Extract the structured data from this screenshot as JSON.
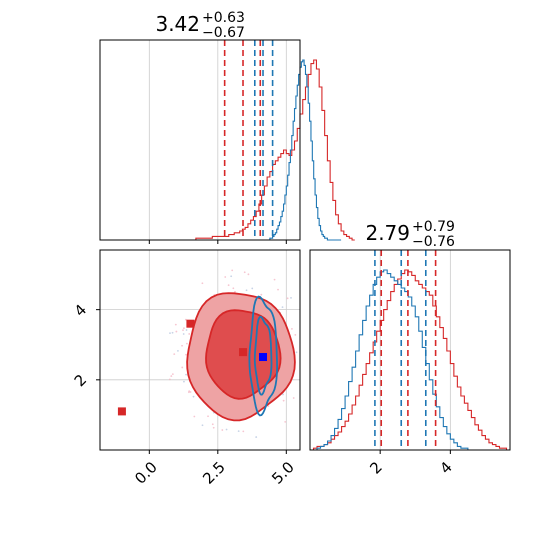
{
  "colors": {
    "red": "#d62728",
    "blue": "#1f77b4",
    "grid": "#cccccc",
    "red_fill_outer": "#eea3a4",
    "red_fill_inner": "#df4d4e"
  },
  "chart_data": [
    {
      "panel": "hist-param-1",
      "type": "histogram",
      "title": {
        "value": "3.42",
        "plus": "+0.63",
        "minus": "−0.67"
      },
      "xlim": [
        -1.8,
        5.5
      ],
      "grid": true,
      "series": [
        {
          "color": "red",
          "bin_start": -0.5,
          "bin_width": 0.1,
          "counts": [
            0,
            0,
            0,
            0,
            0,
            0,
            0,
            0,
            0,
            0,
            0,
            0,
            0,
            0,
            0,
            0,
            0,
            0,
            0,
            0,
            0,
            0,
            1,
            1,
            1,
            1,
            1,
            1,
            2,
            2,
            2,
            2,
            2,
            2,
            3,
            3,
            4,
            4,
            5,
            6,
            7,
            9,
            11,
            13,
            16,
            20,
            25,
            30,
            35,
            38,
            42,
            44,
            46,
            48,
            50,
            48,
            47,
            50,
            55,
            62,
            70,
            78,
            85,
            92,
            98,
            100,
            95,
            85,
            72,
            58,
            44,
            32,
            22,
            14,
            9,
            5,
            3,
            2,
            1,
            0
          ],
          "median": 3.42,
          "q_low": 2.75,
          "q_high": 4.05
        },
        {
          "color": "blue",
          "bin_start": 2.5,
          "bin_width": 0.05,
          "counts": [
            0,
            0,
            0,
            0,
            0,
            0,
            0,
            0,
            0,
            0,
            0,
            0,
            0,
            0,
            0,
            0,
            0,
            0,
            0,
            0,
            0,
            0,
            0,
            0,
            0,
            0,
            0,
            0,
            0,
            0,
            0,
            0,
            0,
            0,
            0,
            0,
            0,
            0,
            1,
            1,
            2,
            3,
            4,
            6,
            8,
            10,
            13,
            16,
            20,
            25,
            30,
            36,
            43,
            50,
            58,
            66,
            73,
            80,
            86,
            92,
            96,
            99,
            100,
            97,
            92,
            85,
            76,
            66,
            55,
            44,
            34,
            25,
            18,
            12,
            8,
            5,
            3,
            2,
            1,
            1,
            0,
            0,
            0,
            0,
            0,
            0,
            0,
            0,
            0,
            0
          ],
          "median": 4.15,
          "q_low": 3.85,
          "q_high": 4.5
        }
      ]
    },
    {
      "panel": "scatter-contour",
      "type": "scatter",
      "xlim": [
        -1.8,
        5.5
      ],
      "ylim": [
        0.0,
        5.7
      ],
      "xticks": [
        "0.0",
        "2.5",
        "5.0"
      ],
      "yticks": [
        "2",
        "4"
      ],
      "xtick_values": [
        0.0,
        2.5,
        5.0
      ],
      "ytick_values": [
        2,
        4
      ],
      "grid": true,
      "red_points": [
        {
          "x": -1.0,
          "y": 1.1
        },
        {
          "x": 1.5,
          "y": 3.6
        },
        {
          "x": 3.42,
          "y": 2.79
        }
      ],
      "blue_points": [
        {
          "x": 4.15,
          "y": 2.65
        }
      ],
      "red_contours": [
        {
          "cx": 3.3,
          "cy": 2.7,
          "rx": 1.95,
          "ry": 1.8,
          "level": "outer"
        },
        {
          "cx": 3.4,
          "cy": 2.75,
          "rx": 1.35,
          "ry": 1.25,
          "level": "inner"
        }
      ],
      "blue_contours": [
        {
          "cx": 4.15,
          "cy": 2.7,
          "rx": 0.5,
          "ry": 1.6
        },
        {
          "cx": 4.15,
          "cy": 2.7,
          "rx": 0.3,
          "ry": 1.05
        }
      ]
    },
    {
      "panel": "hist-param-2",
      "type": "histogram",
      "title": {
        "value": "2.79",
        "plus": "+0.79",
        "minus": "−0.76"
      },
      "xlim": [
        0.0,
        5.7
      ],
      "xticks": [
        "2",
        "4"
      ],
      "xtick_values": [
        2,
        4
      ],
      "grid": true,
      "series": [
        {
          "color": "red",
          "bin_start": 0.0,
          "bin_width": 0.1,
          "counts": [
            0,
            1,
            2,
            2,
            3,
            4,
            6,
            8,
            10,
            13,
            16,
            20,
            25,
            30,
            36,
            42,
            48,
            54,
            60,
            66,
            72,
            78,
            83,
            88,
            92,
            95,
            98,
            100,
            99,
            97,
            94,
            92,
            90,
            88,
            86,
            80,
            74,
            68,
            62,
            55,
            48,
            41,
            35,
            30,
            26,
            22,
            18,
            14,
            11,
            8,
            6,
            4,
            3,
            2,
            1,
            1,
            0
          ],
          "median": 2.79,
          "q_low": 2.03,
          "q_high": 3.58
        },
        {
          "color": "blue",
          "bin_start": 0.0,
          "bin_width": 0.1,
          "counts": [
            0,
            0,
            1,
            2,
            3,
            5,
            8,
            12,
            17,
            23,
            30,
            38,
            46,
            55,
            64,
            72,
            80,
            86,
            92,
            96,
            99,
            100,
            98,
            96,
            94,
            92,
            90,
            88,
            85,
            80,
            74,
            66,
            57,
            48,
            39,
            31,
            24,
            18,
            13,
            9,
            6,
            4,
            2,
            1,
            1,
            0,
            0,
            0,
            0,
            0,
            0,
            0,
            0,
            0,
            0,
            0,
            0
          ],
          "median": 2.6,
          "q_low": 1.85,
          "q_high": 3.3
        }
      ]
    }
  ]
}
